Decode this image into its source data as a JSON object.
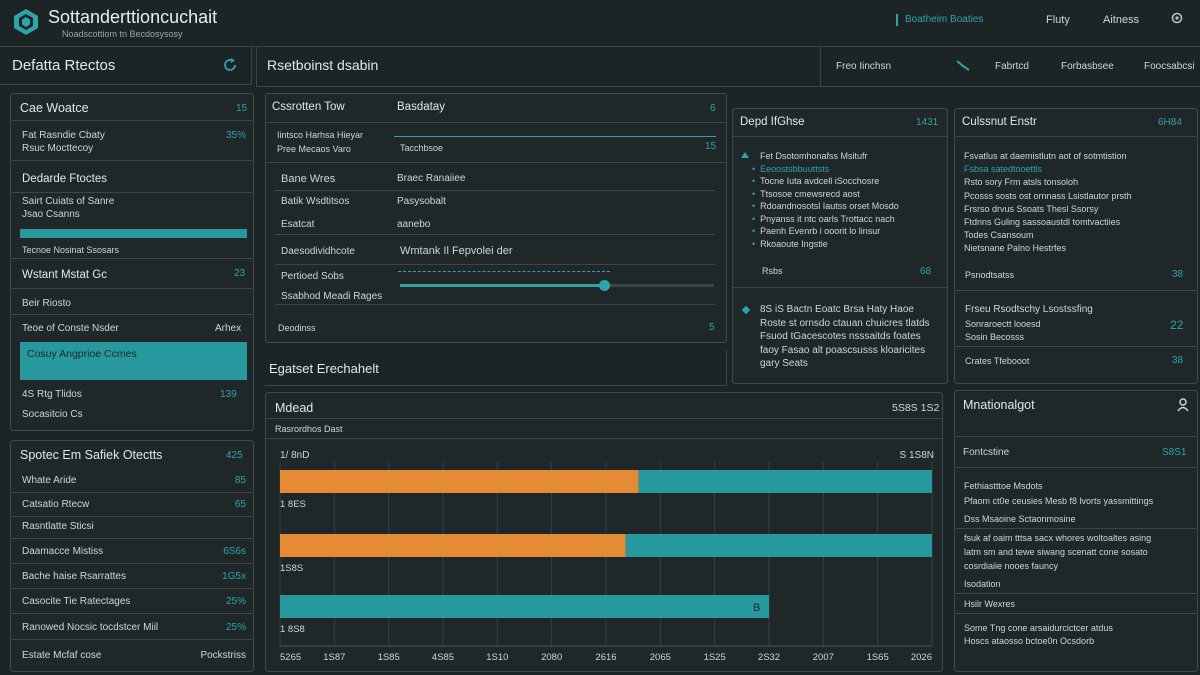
{
  "header": {
    "app_title": "Sottanderttioncuchait",
    "app_subtitle": "Noadscottiom tn Becdosysosy",
    "nav_link": "Boatheim Boaties",
    "nav_item_1": "Fluty",
    "nav_item_2": "Aitness"
  },
  "left": {
    "title": "Defatta Rtectos",
    "card1": {
      "title": "Cae Woatce",
      "count": "15",
      "row1": "Fat Rasndie Cbaty",
      "row1_num": "35%",
      "row2": "Rsuc Mocttecoy",
      "section": "Dedarde Ftoctes",
      "row3": "Sairt Cuiats of Sanre",
      "row4": "Jsao Csanns",
      "progress_label": "Tecnoe Nosinat Ssosars",
      "progress_value": 1.0,
      "wm_title": "Wstant Mstat Gc",
      "wm_num": "23",
      "wm_row": "Beir Riosto",
      "wm_row2": "Teoe of Conste Nsder",
      "wm_row2_right": "Arhex",
      "highlight": "Cosuy Angprioe Ccmes",
      "hl_row": "4S Rtg Tlidos",
      "hl_row_num": "139",
      "hl_row2": "Socasitcio Cs"
    },
    "card2": {
      "title": "Spotec Em Safiek Otectts",
      "count": "425",
      "rows": [
        {
          "label": "Whate Aride",
          "value": "85"
        },
        {
          "label": "Catsatio Rtecw",
          "value": "65"
        },
        {
          "label": "Rasntlatte Sticsi",
          "value": ""
        },
        {
          "label": "Daamacce Mistiss",
          "value": "6S6s"
        },
        {
          "label": "Bache haise Rsarrattes",
          "value": "1G5x"
        },
        {
          "label": "Casocite Tie Ratectages",
          "value": "25%"
        },
        {
          "label": "Ranowed Nocsic tocdstcer Miil",
          "value": "25%"
        },
        {
          "label": "Estate Mcfaf cose",
          "value": "Pockstriss"
        }
      ]
    }
  },
  "middle": {
    "title": "Rsetboinst dsabin",
    "card": {
      "col1": "Cssrotten Tow",
      "col2": "Basdatay",
      "col_right": "6",
      "r1": "Iintsco Harhsa Hieyar",
      "r1b": "Pree Mecaos Varo",
      "r1_tag": "Tacchbsoe",
      "r1_right": "15",
      "r2": "Bane Wres",
      "r2b": "Braec Ranaiiee",
      "r3": "Batik Wsdtitsos",
      "r3b": "Pasysobalt",
      "r4": "Esatcat",
      "r4b": "aanebo",
      "r5": "Daesodividhcote",
      "r5b": "Wmtank Il Fepvolei der",
      "r6": "Pertioed Sobs",
      "r7": "Ssabhod Meadi Rages",
      "slider_value": 0.65,
      "footer": "Deodinss",
      "footer_right": "5"
    },
    "section_title": "Egatset Erechahelt",
    "chart_panel": {
      "title": "Mdead",
      "title_right": "5S8S 1S2",
      "subtitle": "Rasrordhos Dast",
      "top_left": "1/ 8nD",
      "top_right": "S 1S8N",
      "bar_label_1": "1 8ES",
      "bar_label_2": "1S8S",
      "bar_label_3": "1 8S8",
      "end_marker": "B"
    }
  },
  "chart_data": {
    "type": "bar",
    "orientation": "horizontal",
    "stacked": true,
    "categories": [
      "1 8ES",
      "1S8S",
      "1 8S8"
    ],
    "series": [
      {
        "color": "#e58a35",
        "values": [
          0.55,
          0.53,
          0
        ]
      },
      {
        "color": "#27989d",
        "values": [
          0.45,
          0.47,
          0.75
        ]
      }
    ],
    "xlim": [
      0,
      1
    ],
    "x_tick_labels": [
      "5265",
      "1S87",
      "1S85",
      "4S85",
      "1S10",
      "2080",
      "2616",
      "2065",
      "1S25",
      "2S32",
      "2007",
      "1S65",
      "2026"
    ],
    "grid": "vertical"
  },
  "right": {
    "toolbar": {
      "item1": "Freo Iinchsn",
      "item2": "Fabrtcd",
      "item3": "Forbasbsee",
      "item4": "Foocsabcsi"
    },
    "card_a": {
      "title": "Depd IfGhse",
      "num": "1431",
      "lines": [
        "Fet Dsotomhonafss Msitufr",
        "Eeoostsbbuuttsts",
        "Tocne Iuta avdcell iSocchosre",
        "Ttsosoe cmewsrecd aost",
        "Rdoandnosotsl Iautss orset Mosdo",
        "Pnyanss it ntc oarls Trottacc nach",
        "Paenh Evenrb i ooorit lo linsur",
        "Rkoaoute Ingstie"
      ],
      "footer": "Rsbs",
      "footer_num": "68",
      "para": "8S iS Bactn Eoatc Brsa Haty Haoe Roste st ornsdo ctauan chuicres tlatds Fsuod tGacescotes nsssaitds foates faoy Fasao alt poascsusss kloaricites gary Seats"
    },
    "card_b": {
      "title": "Culssnut Enstr",
      "num": "6H84",
      "lines": [
        "Fsvatlus at daemistlutn aot of sotmtistion",
        "Fsbsa satedtooettls",
        "Rsto sory Frm atsls tonsoloh",
        "Pcosss sosts ost ornnass Lsistlautor prsth",
        "Frsrso drvus Ssoats Thesl Ssorsy",
        "Ftdnns Guling sassoaustdl tomtvactiies",
        "Todes Csansoum",
        "Nietsnane Palno Hestrfes"
      ],
      "foot1": "Psnodtsatss",
      "foot1_num": "38",
      "foot2": "Frseu Rsodtschy Lsostssfing",
      "foot3": "Sonraroectt looesd",
      "foot3_num": "22",
      "foot4": "Sosin Becosss",
      "foot5": "Crates Tfebooot",
      "foot5_num": "38"
    },
    "card_c": {
      "title": "Mnationalgot",
      "sub": "Fontcstine",
      "sub_num": "S8S1",
      "lines": [
        "Fethiastttoe Msdots",
        "Pfaom ct0e ceusies Mesb f8 lvorts yassmittings",
        "Dss Msaoine Sctaonmosine",
        "fsuk af oaim tttsa sacx whores woltoaltes asing",
        "latm sm and tewe siwang scenatt cone sosato",
        "cosrdiaiie nooes fauncy",
        "Isodation",
        "Hsilr Wexres",
        "Some Tng cone arsaidurcictcer atdus",
        "Hoscs ataosso bctoe0n Ocsdorb"
      ]
    }
  }
}
